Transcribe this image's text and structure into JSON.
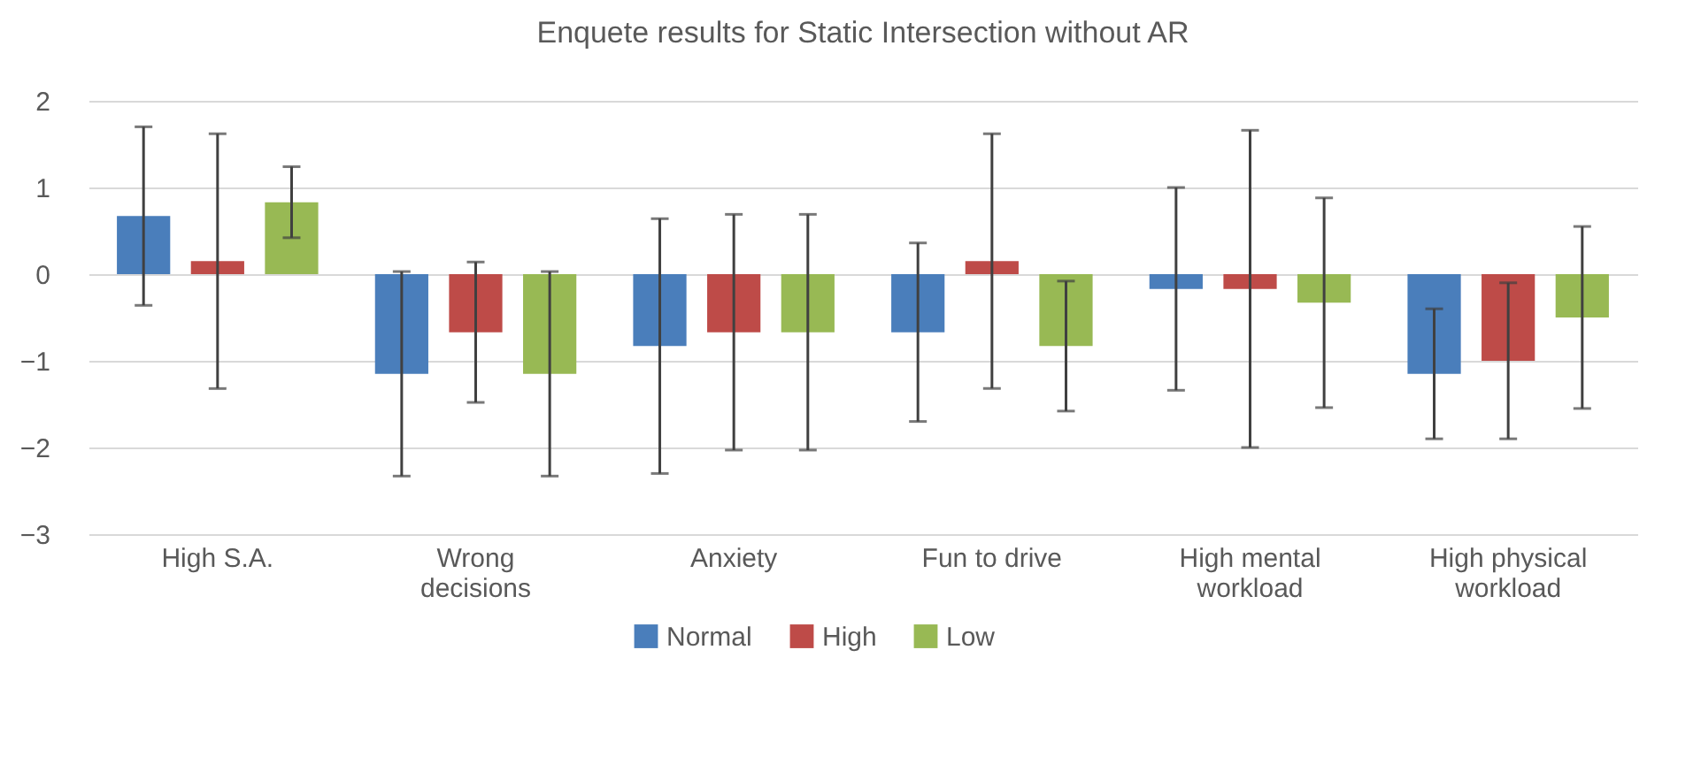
{
  "chart_data": {
    "type": "bar",
    "title": "Enquete results for Static Intersection without AR",
    "categories": [
      "High S.A.",
      "Wrong decisions",
      "Anxiety",
      "Fun to drive",
      "High mental workload",
      "High physical workload"
    ],
    "series": [
      {
        "name": "Normal",
        "color": "#4a7ebb",
        "values": [
          0.67,
          -1.15,
          -0.83,
          -0.67,
          -0.17,
          -1.15
        ],
        "errors": [
          1.03,
          1.18,
          1.47,
          1.03,
          1.17,
          0.75
        ]
      },
      {
        "name": "High",
        "color": "#be4b48",
        "values": [
          0.15,
          -0.67,
          -0.67,
          0.15,
          -0.17,
          -1.0
        ],
        "errors": [
          1.47,
          0.81,
          1.36,
          1.47,
          1.83,
          0.9
        ]
      },
      {
        "name": "Low",
        "color": "#98b954",
        "values": [
          0.83,
          -1.15,
          -0.67,
          -0.83,
          -0.33,
          -0.5
        ],
        "errors": [
          0.41,
          1.18,
          1.36,
          0.75,
          1.21,
          1.05
        ]
      }
    ],
    "ylim": [
      -3,
      2
    ],
    "yticks": [
      -3,
      -2,
      -1,
      0,
      1,
      2
    ],
    "grid": "y",
    "legend": "bottom"
  }
}
